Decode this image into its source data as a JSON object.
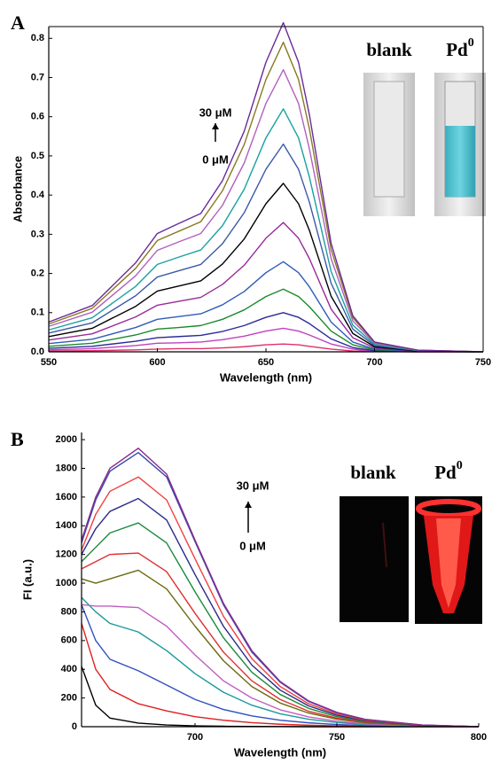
{
  "chart_data": [
    {
      "type": "line",
      "panel": "A",
      "x_label": "Wavelength (nm)",
      "y_label": "Absorbance",
      "annotations": [
        "30 μM",
        "0 μM"
      ],
      "inset_labels": [
        "blank",
        "Pd",
        "0"
      ],
      "xlim": [
        550,
        750
      ],
      "xticks": [
        550,
        600,
        650,
        700,
        750
      ],
      "ylim": [
        0,
        0.83
      ],
      "yticks": [
        {
          "value": 0,
          "label": "0.0"
        },
        0.1,
        0.2,
        0.3,
        0.4,
        0.5,
        0.6,
        0.7,
        0.8
      ],
      "x": [
        550,
        570,
        590,
        600,
        610,
        620,
        630,
        640,
        650,
        658,
        665,
        670,
        680,
        690,
        700,
        720,
        750
      ],
      "series": [
        {
          "color": "#e0306a",
          "values": [
            0.002,
            0.003,
            0.005,
            0.007,
            0.008,
            0.008,
            0.01,
            0.013,
            0.018,
            0.02,
            0.018,
            0.014,
            0.007,
            0.002,
            0.001,
            0,
            0
          ]
        },
        {
          "color": "#c040c0",
          "values": [
            0.005,
            0.008,
            0.016,
            0.022,
            0.023,
            0.025,
            0.031,
            0.04,
            0.053,
            0.06,
            0.053,
            0.043,
            0.02,
            0.007,
            0.002,
            0,
            0
          ]
        },
        {
          "color": "#2a2a9a",
          "values": [
            0.009,
            0.014,
            0.027,
            0.036,
            0.039,
            0.042,
            0.052,
            0.067,
            0.088,
            0.1,
            0.088,
            0.072,
            0.033,
            0.011,
            0.003,
            0.001,
            0
          ]
        },
        {
          "color": "#1a8a2a",
          "values": [
            0.014,
            0.022,
            0.043,
            0.058,
            0.062,
            0.067,
            0.083,
            0.107,
            0.141,
            0.16,
            0.141,
            0.115,
            0.053,
            0.018,
            0.005,
            0.001,
            0
          ]
        },
        {
          "color": "#2e5cb8",
          "values": [
            0.021,
            0.032,
            0.062,
            0.083,
            0.09,
            0.097,
            0.12,
            0.154,
            0.202,
            0.23,
            0.202,
            0.166,
            0.076,
            0.025,
            0.007,
            0.001,
            0
          ]
        },
        {
          "color": "#9a2a9a",
          "values": [
            0.03,
            0.046,
            0.089,
            0.119,
            0.129,
            0.139,
            0.172,
            0.221,
            0.29,
            0.33,
            0.29,
            0.238,
            0.109,
            0.036,
            0.01,
            0.002,
            0
          ]
        },
        {
          "color": "#000000",
          "values": [
            0.039,
            0.06,
            0.116,
            0.155,
            0.168,
            0.181,
            0.224,
            0.288,
            0.378,
            0.43,
            0.378,
            0.31,
            0.142,
            0.047,
            0.013,
            0.002,
            0
          ]
        },
        {
          "color": "#3a5aa8",
          "values": [
            0.048,
            0.074,
            0.143,
            0.191,
            0.207,
            0.223,
            0.276,
            0.355,
            0.466,
            0.53,
            0.466,
            0.382,
            0.175,
            0.058,
            0.016,
            0.003,
            0
          ]
        },
        {
          "color": "#1aa0a0",
          "values": [
            0.056,
            0.087,
            0.167,
            0.223,
            0.242,
            0.26,
            0.322,
            0.415,
            0.546,
            0.62,
            0.546,
            0.446,
            0.205,
            0.068,
            0.019,
            0.003,
            0
          ]
        },
        {
          "color": "#b060c0",
          "values": [
            0.065,
            0.101,
            0.194,
            0.259,
            0.281,
            0.302,
            0.374,
            0.482,
            0.634,
            0.72,
            0.634,
            0.518,
            0.238,
            0.079,
            0.022,
            0.004,
            0
          ]
        },
        {
          "color": "#8a7a20",
          "values": [
            0.071,
            0.111,
            0.213,
            0.284,
            0.308,
            0.332,
            0.411,
            0.529,
            0.695,
            0.79,
            0.695,
            0.569,
            0.261,
            0.087,
            0.024,
            0.004,
            0
          ]
        },
        {
          "color": "#6a2a9a",
          "values": [
            0.076,
            0.118,
            0.227,
            0.302,
            0.328,
            0.353,
            0.437,
            0.563,
            0.739,
            0.84,
            0.739,
            0.605,
            0.277,
            0.092,
            0.025,
            0.004,
            0
          ]
        }
      ]
    },
    {
      "type": "line",
      "panel": "B",
      "x_label": "Wavelength (nm)",
      "y_label": "FI (a.u.)",
      "annotations": [
        "30 μM",
        "0 μM"
      ],
      "inset_labels": [
        "blank",
        "Pd",
        "0"
      ],
      "xlim": [
        660,
        800
      ],
      "xticks": [
        700,
        750,
        800
      ],
      "ylim": [
        0,
        2050
      ],
      "yticks": [
        0,
        200,
        400,
        600,
        800,
        1000,
        1200,
        1400,
        1600,
        1800,
        2000
      ],
      "x": [
        660,
        665,
        670,
        680,
        690,
        700,
        710,
        720,
        730,
        740,
        750,
        760,
        780,
        800
      ],
      "series": [
        {
          "color": "#000000",
          "values": [
            420,
            150,
            60,
            25,
            12,
            6,
            3,
            2,
            1,
            0,
            0,
            0,
            0,
            0
          ]
        },
        {
          "color": "#e02020",
          "values": [
            720,
            400,
            260,
            160,
            110,
            70,
            45,
            28,
            17,
            10,
            6,
            3,
            1,
            0
          ]
        },
        {
          "color": "#3050c0",
          "values": [
            850,
            600,
            470,
            390,
            290,
            190,
            120,
            75,
            45,
            27,
            15,
            8,
            2,
            0
          ]
        },
        {
          "color": "#1a9a9a",
          "values": [
            900,
            800,
            720,
            660,
            530,
            370,
            240,
            150,
            90,
            52,
            29,
            15,
            4,
            0
          ]
        },
        {
          "color": "#c060c0",
          "values": [
            850,
            840,
            840,
            830,
            700,
            500,
            320,
            200,
            118,
            68,
            38,
            20,
            5,
            0
          ]
        },
        {
          "color": "#6a6a10",
          "values": [
            1030,
            1000,
            1030,
            1090,
            960,
            700,
            460,
            280,
            165,
            95,
            52,
            27,
            7,
            0
          ]
        },
        {
          "color": "#e03030",
          "values": [
            1100,
            1150,
            1200,
            1210,
            1080,
            790,
            520,
            320,
            190,
            108,
            60,
            31,
            8,
            0
          ]
        },
        {
          "color": "#1a8a3a",
          "values": [
            1150,
            1250,
            1350,
            1420,
            1280,
            940,
            620,
            380,
            225,
            128,
            70,
            36,
            9,
            0
          ]
        },
        {
          "color": "#2a2a8a",
          "values": [
            1200,
            1380,
            1500,
            1590,
            1440,
            1060,
            700,
            430,
            255,
            145,
            80,
            41,
            10,
            0
          ]
        },
        {
          "color": "#f04040",
          "values": [
            1230,
            1480,
            1640,
            1740,
            1580,
            1170,
            770,
            475,
            280,
            160,
            88,
            45,
            11,
            0
          ]
        },
        {
          "color": "#3a4ab0",
          "values": [
            1280,
            1580,
            1780,
            1910,
            1740,
            1290,
            850,
            520,
            310,
            176,
            97,
            50,
            12,
            0
          ]
        },
        {
          "color": "#8a2a8a",
          "values": [
            1300,
            1600,
            1800,
            1940,
            1760,
            1300,
            860,
            530,
            315,
            180,
            100,
            51,
            12,
            0
          ]
        }
      ]
    }
  ]
}
